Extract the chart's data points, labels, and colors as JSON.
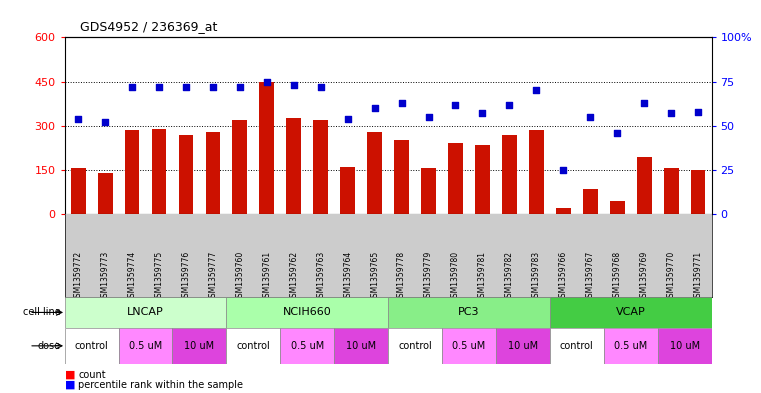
{
  "title": "GDS4952 / 236369_at",
  "samples": [
    "GSM1359772",
    "GSM1359773",
    "GSM1359774",
    "GSM1359775",
    "GSM1359776",
    "GSM1359777",
    "GSM1359760",
    "GSM1359761",
    "GSM1359762",
    "GSM1359763",
    "GSM1359764",
    "GSM1359765",
    "GSM1359778",
    "GSM1359779",
    "GSM1359780",
    "GSM1359781",
    "GSM1359782",
    "GSM1359783",
    "GSM1359766",
    "GSM1359767",
    "GSM1359768",
    "GSM1359769",
    "GSM1359770",
    "GSM1359771"
  ],
  "counts": [
    155,
    140,
    285,
    290,
    270,
    280,
    320,
    450,
    325,
    320,
    160,
    280,
    250,
    155,
    240,
    235,
    270,
    285,
    20,
    85,
    45,
    195,
    155,
    150
  ],
  "percentiles": [
    54,
    52,
    72,
    72,
    72,
    72,
    72,
    75,
    73,
    72,
    54,
    60,
    63,
    55,
    62,
    57,
    62,
    70,
    25,
    55,
    46,
    63,
    57,
    58
  ],
  "cell_lines": [
    {
      "name": "LNCAP",
      "start": 0,
      "end": 6,
      "color": "#ccffcc"
    },
    {
      "name": "NCIH660",
      "start": 6,
      "end": 12,
      "color": "#aaffaa"
    },
    {
      "name": "PC3",
      "start": 12,
      "end": 18,
      "color": "#88ee88"
    },
    {
      "name": "VCAP",
      "start": 18,
      "end": 24,
      "color": "#44cc44"
    }
  ],
  "doses": [
    {
      "label": "control",
      "start": 0,
      "end": 2,
      "color": "#ffffff"
    },
    {
      "label": "0.5 uM",
      "start": 2,
      "end": 4,
      "color": "#ff88ff"
    },
    {
      "label": "10 uM",
      "start": 4,
      "end": 6,
      "color": "#dd44dd"
    },
    {
      "label": "control",
      "start": 6,
      "end": 8,
      "color": "#ffffff"
    },
    {
      "label": "0.5 uM",
      "start": 8,
      "end": 10,
      "color": "#ff88ff"
    },
    {
      "label": "10 uM",
      "start": 10,
      "end": 12,
      "color": "#dd44dd"
    },
    {
      "label": "control",
      "start": 12,
      "end": 14,
      "color": "#ffffff"
    },
    {
      "label": "0.5 uM",
      "start": 14,
      "end": 16,
      "color": "#ff88ff"
    },
    {
      "label": "10 uM",
      "start": 16,
      "end": 18,
      "color": "#dd44dd"
    },
    {
      "label": "control",
      "start": 18,
      "end": 20,
      "color": "#ffffff"
    },
    {
      "label": "0.5 uM",
      "start": 20,
      "end": 22,
      "color": "#ff88ff"
    },
    {
      "label": "10 uM",
      "start": 22,
      "end": 24,
      "color": "#dd44dd"
    }
  ],
  "bar_color": "#cc1100",
  "dot_color": "#0000cc",
  "ylim_left": [
    0,
    600
  ],
  "ylim_right": [
    0,
    100
  ],
  "yticks_left": [
    0,
    150,
    300,
    450,
    600
  ],
  "ytick_labels_left": [
    "0",
    "150",
    "300",
    "450",
    "600"
  ],
  "yticks_right": [
    0,
    25,
    50,
    75,
    100
  ],
  "ytick_labels_right": [
    "0",
    "25",
    "50",
    "75",
    "100%"
  ],
  "hgrid_vals": [
    150,
    300,
    450
  ],
  "xtick_bg": "#cccccc",
  "cell_line_bg": "#dddddd",
  "title_fontsize": 9,
  "ytick_fontsize": 8,
  "xtick_fontsize": 5.5,
  "row_label_fontsize": 7,
  "cell_fontsize": 8,
  "dose_fontsize": 7,
  "legend_fontsize": 7,
  "bar_width": 0.55
}
